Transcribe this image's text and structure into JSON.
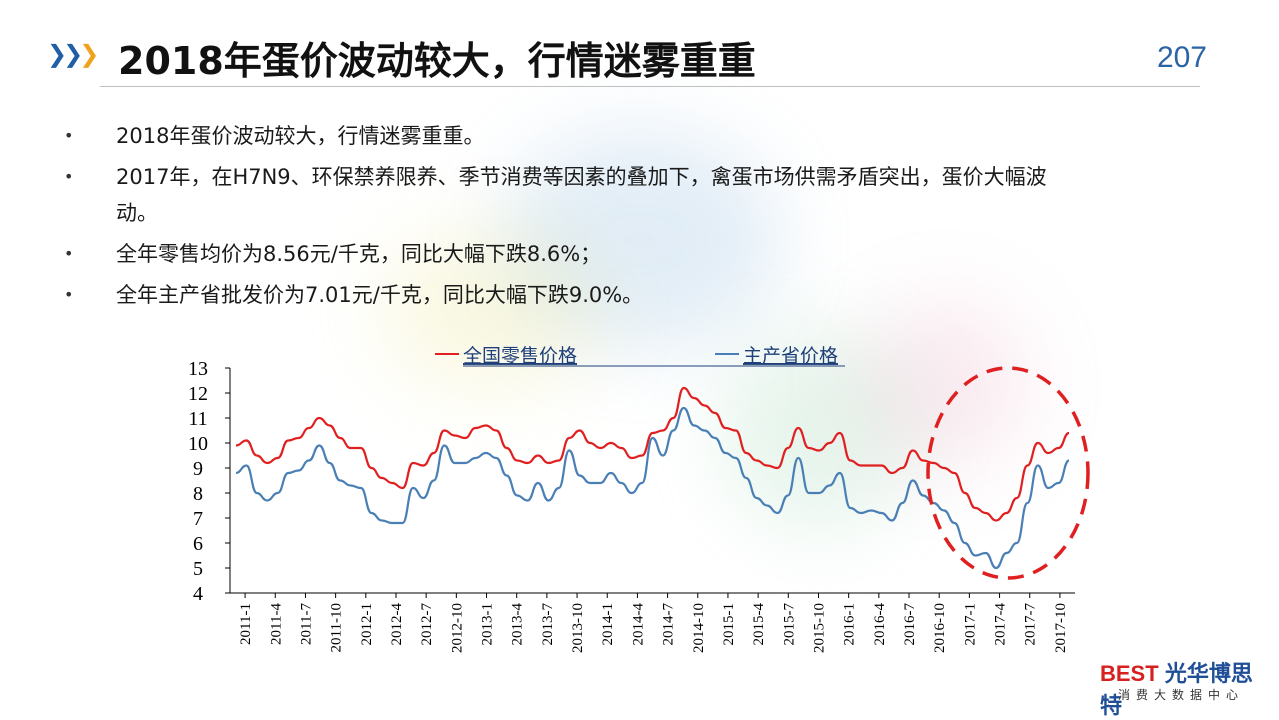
{
  "header": {
    "title": "2018年蛋价波动较大，行情迷雾重重",
    "page_number": "207"
  },
  "bullets": [
    "2018年蛋价波动较大，行情迷雾重重。",
    "2017年，在H7N9、环保禁养限养、季节消费等因素的叠加下，禽蛋市场供需矛盾突出，蛋价大幅波动。",
    "全年零售均价为8.56元/千克，同比大幅下跌8.6%；",
    "全年主产省批发价为7.01元/千克，同比大幅下跌9.0%。"
  ],
  "logo": {
    "brand_main": "BEST",
    "brand_cn": "光华博思特",
    "sub": "消费大数据中心"
  },
  "colors": {
    "retail": "#e02020",
    "wholesale": "#4a7fb5",
    "highlight_circle": "#e02020"
  },
  "chart_data": {
    "type": "line",
    "title": "",
    "xlabel": "",
    "ylabel": "",
    "ylim": [
      4,
      13
    ],
    "yticks": [
      "13",
      "12",
      "11",
      "10",
      "9",
      "8",
      "7",
      "6",
      "5",
      "4"
    ],
    "xticks": [
      "2011-1",
      "2011-4",
      "2011-7",
      "2011-10",
      "2012-1",
      "2012-4",
      "2012-7",
      "2012-10",
      "2013-1",
      "2013-4",
      "2013-7",
      "2013-10",
      "2014-1",
      "2014-4",
      "2014-7",
      "2014-10",
      "2015-1",
      "2015-4",
      "2015-7",
      "2015-10",
      "2016-1",
      "2016-4",
      "2016-7",
      "2016-10",
      "2017-1",
      "2017-4",
      "2017-7",
      "2017-10"
    ],
    "legend_position": "top",
    "grid": false,
    "series": [
      {
        "name": "全国零售价格",
        "values": [
          9.9,
          10.1,
          9.5,
          9.2,
          9.4,
          10.1,
          10.2,
          10.6,
          11.0,
          10.7,
          10.2,
          9.8,
          9.8,
          9.0,
          8.6,
          8.4,
          8.2,
          9.2,
          9.1,
          9.6,
          10.5,
          10.3,
          10.2,
          10.6,
          10.7,
          10.5,
          9.8,
          9.3,
          9.2,
          9.5,
          9.2,
          9.3,
          10.2,
          10.5,
          10.0,
          9.8,
          10.0,
          9.8,
          9.4,
          9.5,
          10.4,
          10.5,
          11.0,
          12.2,
          11.8,
          11.5,
          11.2,
          10.6,
          10.5,
          9.6,
          9.3,
          9.1,
          9.0,
          9.8,
          10.6,
          9.8,
          9.7,
          10.0,
          10.4,
          9.3,
          9.1,
          9.1,
          9.1,
          8.8,
          9.0,
          9.7,
          9.3,
          9.2,
          9.0,
          8.8,
          8.0,
          7.4,
          7.2,
          6.9,
          7.2,
          7.8,
          9.1,
          10.0,
          9.6,
          9.8,
          10.4
        ]
      },
      {
        "name": "主产省价格",
        "values": [
          8.8,
          9.1,
          8.0,
          7.7,
          8.0,
          8.8,
          8.9,
          9.3,
          9.9,
          9.2,
          8.5,
          8.3,
          8.2,
          7.2,
          6.9,
          6.8,
          6.8,
          8.2,
          7.8,
          8.5,
          9.9,
          9.2,
          9.2,
          9.4,
          9.6,
          9.4,
          8.7,
          7.9,
          7.7,
          8.4,
          7.7,
          8.2,
          9.7,
          8.7,
          8.4,
          8.4,
          8.8,
          8.4,
          8.0,
          8.4,
          10.2,
          9.5,
          10.5,
          11.4,
          10.7,
          10.5,
          10.2,
          9.6,
          9.4,
          8.6,
          7.8,
          7.5,
          7.2,
          7.9,
          9.4,
          8.0,
          8.0,
          8.3,
          8.8,
          7.4,
          7.2,
          7.3,
          7.2,
          6.9,
          7.6,
          8.5,
          7.9,
          7.6,
          7.3,
          6.8,
          6.0,
          5.5,
          5.6,
          5.0,
          5.6,
          6.0,
          7.6,
          9.1,
          8.2,
          8.4,
          9.3
        ]
      }
    ]
  }
}
